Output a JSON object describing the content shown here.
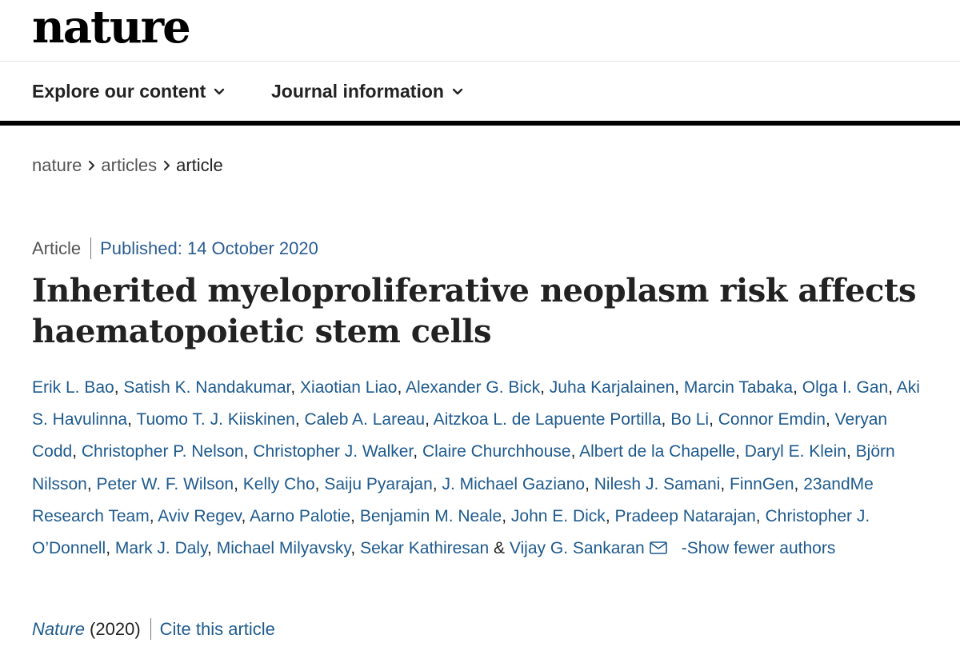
{
  "header": {
    "logo": "nature"
  },
  "nav": {
    "items": [
      {
        "label": "Explore our content",
        "icon": "chevron-down-icon"
      },
      {
        "label": "Journal information",
        "icon": "chevron-down-icon"
      }
    ]
  },
  "breadcrumb": {
    "items": [
      "nature",
      "articles",
      "article"
    ],
    "separator_icon": "chevron-right-icon"
  },
  "article": {
    "type": "Article",
    "published": "Published: 14 October 2020",
    "title": "Inherited myeloproliferative neoplasm risk affects haematopoietic stem cells",
    "authors": [
      "Erik L. Bao",
      "Satish K. Nandakumar",
      "Xiaotian Liao",
      "Alexander G. Bick",
      "Juha Karjalainen",
      "Marcin Tabaka",
      "Olga I. Gan",
      "Aki S. Havulinna",
      "Tuomo T. J. Kiiskinen",
      "Caleb A. Lareau",
      "Aitzkoa L. de Lapuente Portilla",
      "Bo Li",
      "Connor Emdin",
      "Veryan Codd",
      "Christopher P. Nelson",
      "Christopher J. Walker",
      "Claire Churchhouse",
      "Albert de la Chapelle",
      "Daryl E. Klein",
      "Björn Nilsson",
      "Peter W. F. Wilson",
      "Kelly Cho",
      "Saiju Pyarajan",
      "J. Michael Gaziano",
      "Nilesh J. Samani",
      "FinnGen",
      "23andMe Research Team",
      "Aviv Regev",
      "Aarno Palotie",
      "Benjamin M. Neale",
      "John E. Dick",
      "Pradeep Natarajan",
      "Christopher J. O’Donnell",
      "Mark J. Daly",
      "Michael Milyavsky",
      "Sekar Kathiresan",
      "Vijay G. Sankaran"
    ],
    "last_separator": "&",
    "list_separator": ",",
    "mail_icon": "envelope-icon",
    "show_fewer": "-Show fewer authors",
    "journal": "Nature",
    "year": "(2020)",
    "cite": "Cite this article"
  },
  "colors": {
    "link": "#1e5a8e",
    "text": "#222222",
    "muted": "#555555",
    "rule": "#000000"
  }
}
